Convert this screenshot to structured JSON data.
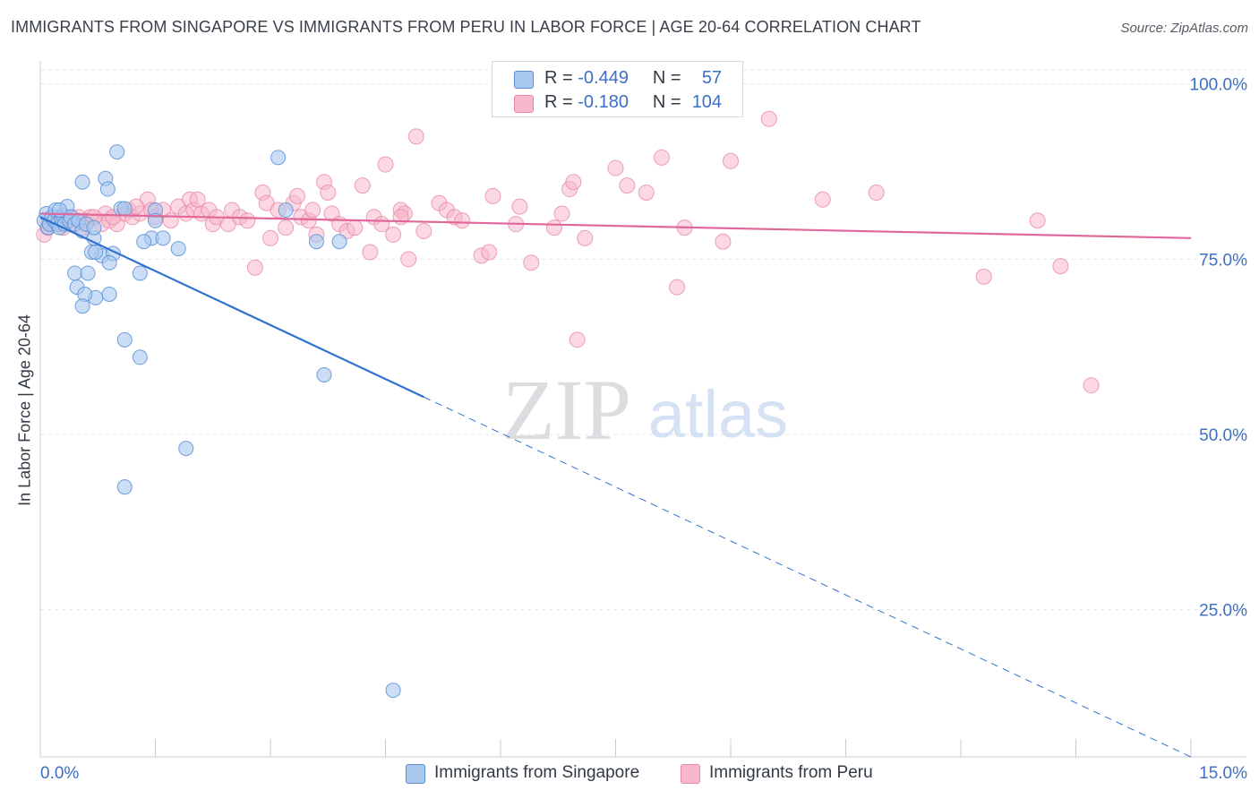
{
  "header": {
    "title": "IMMIGRANTS FROM SINGAPORE VS IMMIGRANTS FROM PERU IN LABOR FORCE | AGE 20-64 CORRELATION CHART",
    "source": "Source: ZipAtlas.com"
  },
  "legend": {
    "singapore": {
      "r_label": "R =",
      "r_value": "-0.449",
      "n_label": "N =",
      "n_value": "57"
    },
    "peru": {
      "r_label": "R =",
      "r_value": "-0.180",
      "n_label": "N =",
      "n_value": "104"
    }
  },
  "watermark": {
    "zip": "ZIP",
    "atlas": "atlas"
  },
  "colors": {
    "singapore_fill": "#a9c8f0",
    "singapore_stroke": "#5b8fd6",
    "singapore_line": "#2f72d0",
    "peru_fill": "#f7b8cc",
    "peru_stroke": "#e889a8",
    "peru_line": "#e0679a",
    "tick_label": "#3c6fc5",
    "grid": "#e3e6ea"
  },
  "chart_data": {
    "type": "scatter",
    "title": "IMMIGRANTS FROM SINGAPORE VS IMMIGRANTS FROM PERU IN LABOR FORCE | AGE 20-64 CORRELATION CHART",
    "xlabel": "",
    "ylabel": "In Labor Force | Age 20-64",
    "xlim": [
      0,
      15
    ],
    "ylim": [
      4,
      102
    ],
    "x_tick_labels": [
      "0.0%",
      "15.0%"
    ],
    "y_ticks": [
      25,
      50,
      75,
      100
    ],
    "y_tick_labels": [
      "25.0%",
      "50.0%",
      "75.0%",
      "100.0%"
    ],
    "grid": true,
    "legend_position": "top-center",
    "series": [
      {
        "name": "Immigrants from Singapore",
        "points": [
          [
            0.05,
            80.5
          ],
          [
            0.08,
            81.5
          ],
          [
            0.1,
            79.5
          ],
          [
            0.12,
            80
          ],
          [
            0.15,
            81
          ],
          [
            0.18,
            80.5
          ],
          [
            0.2,
            82
          ],
          [
            0.22,
            80
          ],
          [
            0.25,
            79.5
          ],
          [
            0.28,
            80.8
          ],
          [
            0.3,
            81.2
          ],
          [
            0.32,
            80
          ],
          [
            0.35,
            82.5
          ],
          [
            0.38,
            80.5
          ],
          [
            0.4,
            81
          ],
          [
            0.45,
            80
          ],
          [
            0.5,
            80.5
          ],
          [
            0.55,
            79
          ],
          [
            0.6,
            80
          ],
          [
            0.7,
            78
          ],
          [
            0.55,
            86
          ],
          [
            0.85,
            86.5
          ],
          [
            0.88,
            85
          ],
          [
            0.8,
            75.5
          ],
          [
            0.95,
            75.8
          ],
          [
            0.67,
            76
          ],
          [
            0.72,
            76
          ],
          [
            0.9,
            74.5
          ],
          [
            0.45,
            73
          ],
          [
            0.62,
            73
          ],
          [
            0.48,
            71
          ],
          [
            0.72,
            69.5
          ],
          [
            0.9,
            70
          ],
          [
            0.58,
            70
          ],
          [
            0.55,
            68.3
          ],
          [
            1.0,
            90.3
          ],
          [
            1.05,
            82.2
          ],
          [
            1.1,
            82.2
          ],
          [
            1.5,
            82
          ],
          [
            1.5,
            80.5
          ],
          [
            1.45,
            78
          ],
          [
            1.35,
            77.5
          ],
          [
            1.8,
            76.5
          ],
          [
            1.3,
            73
          ],
          [
            1.1,
            63.5
          ],
          [
            1.3,
            61
          ],
          [
            1.9,
            48
          ],
          [
            1.1,
            42.5
          ],
          [
            3.1,
            89.5
          ],
          [
            3.2,
            82
          ],
          [
            3.6,
            77.5
          ],
          [
            3.9,
            77.5
          ],
          [
            3.7,
            58.5
          ],
          [
            4.6,
            13.5
          ],
          [
            0.7,
            79.5
          ],
          [
            1.6,
            78
          ],
          [
            0.25,
            82
          ]
        ],
        "trend": {
          "x0": 0,
          "y0": 81,
          "x_solid_end": 5,
          "x1": 15,
          "y1": 4
        }
      },
      {
        "name": "Immigrants from Peru",
        "points": [
          [
            0.05,
            78.5
          ],
          [
            0.1,
            79.5
          ],
          [
            0.15,
            80
          ],
          [
            0.2,
            81
          ],
          [
            0.3,
            79.5
          ],
          [
            0.35,
            80.5
          ],
          [
            0.4,
            81
          ],
          [
            0.45,
            80
          ],
          [
            0.5,
            81
          ],
          [
            0.55,
            79.5
          ],
          [
            0.6,
            80.5
          ],
          [
            0.65,
            81
          ],
          [
            0.8,
            80
          ],
          [
            0.85,
            81.5
          ],
          [
            0.9,
            80.5
          ],
          [
            1.0,
            80
          ],
          [
            1.1,
            81.5
          ],
          [
            1.15,
            82
          ],
          [
            1.2,
            81
          ],
          [
            1.3,
            81.5
          ],
          [
            1.4,
            83.5
          ],
          [
            1.45,
            82
          ],
          [
            1.5,
            81
          ],
          [
            1.6,
            82
          ],
          [
            1.7,
            80.5
          ],
          [
            1.8,
            82.5
          ],
          [
            1.9,
            81.5
          ],
          [
            1.95,
            83.5
          ],
          [
            2.0,
            82
          ],
          [
            2.1,
            81.5
          ],
          [
            2.2,
            82
          ],
          [
            2.25,
            80
          ],
          [
            2.3,
            81
          ],
          [
            2.45,
            80
          ],
          [
            2.5,
            82
          ],
          [
            2.6,
            81
          ],
          [
            2.7,
            80.5
          ],
          [
            2.8,
            73.8
          ],
          [
            2.9,
            84.5
          ],
          [
            2.95,
            83
          ],
          [
            3.0,
            78
          ],
          [
            3.1,
            82
          ],
          [
            3.2,
            79.5
          ],
          [
            3.3,
            83
          ],
          [
            3.4,
            81
          ],
          [
            3.5,
            80.5
          ],
          [
            3.55,
            82
          ],
          [
            3.6,
            78.5
          ],
          [
            3.7,
            86
          ],
          [
            3.75,
            84.5
          ],
          [
            3.8,
            81.5
          ],
          [
            3.9,
            80
          ],
          [
            4.0,
            79
          ],
          [
            4.1,
            79.5
          ],
          [
            4.2,
            85.5
          ],
          [
            4.3,
            76
          ],
          [
            4.35,
            81
          ],
          [
            4.45,
            80
          ],
          [
            4.5,
            88.5
          ],
          [
            4.6,
            78.5
          ],
          [
            4.7,
            82
          ],
          [
            4.75,
            81.5
          ],
          [
            4.8,
            75
          ],
          [
            4.9,
            92.5
          ],
          [
            5.0,
            79
          ],
          [
            5.2,
            83
          ],
          [
            5.3,
            82
          ],
          [
            5.4,
            81
          ],
          [
            5.5,
            80.5
          ],
          [
            5.75,
            75.5
          ],
          [
            5.85,
            76
          ],
          [
            5.9,
            84
          ],
          [
            6.2,
            80
          ],
          [
            6.25,
            82.5
          ],
          [
            6.4,
            74.5
          ],
          [
            6.7,
            79.5
          ],
          [
            6.8,
            81.5
          ],
          [
            6.9,
            85
          ],
          [
            6.95,
            86
          ],
          [
            7.0,
            63.5
          ],
          [
            7.1,
            78
          ],
          [
            7.5,
            88
          ],
          [
            7.65,
            85.5
          ],
          [
            7.9,
            84.5
          ],
          [
            8.1,
            89.5
          ],
          [
            8.3,
            71
          ],
          [
            8.4,
            79.5
          ],
          [
            8.9,
            77.5
          ],
          [
            9.0,
            89
          ],
          [
            9.5,
            95
          ],
          [
            10.2,
            83.5
          ],
          [
            10.9,
            84.5
          ],
          [
            12.3,
            72.5
          ],
          [
            13.0,
            80.5
          ],
          [
            13.3,
            74
          ],
          [
            13.7,
            57
          ],
          [
            0.25,
            80
          ],
          [
            0.7,
            81
          ],
          [
            1.25,
            82.5
          ],
          [
            2.05,
            83.5
          ],
          [
            3.35,
            84
          ],
          [
            4.7,
            81
          ],
          [
            0.12,
            80.5
          ],
          [
            0.95,
            81
          ]
        ],
        "trend": {
          "x0": 0,
          "y0": 81.5,
          "x1": 15,
          "y1": 78
        }
      }
    ]
  }
}
